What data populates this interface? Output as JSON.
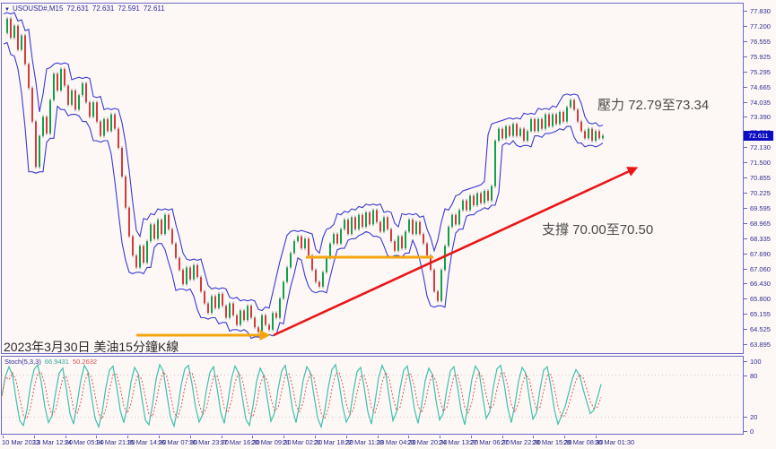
{
  "window_title": "USOUSD#,M15 chart",
  "colors": {
    "bg": "#fdf8f6",
    "frame": "#6a6ac4",
    "axis_text": "#2e2e8f",
    "band_blue": "#3a3ad6",
    "candle_up": "#0fa14a",
    "candle_down": "#d43a3a",
    "wick": "#555555",
    "orange_line": "#f4a50e",
    "trend_arrow_red": "#ea1616",
    "price_box_bg": "#0d0dc4",
    "stoch_k_teal": "#3fbfae",
    "stoch_d_red": "#dd5858",
    "level_dotted": "#cfc2c2"
  },
  "header": {
    "dropdown_icon": "▼",
    "symbol": "USOUSD#,M15",
    "ohlc": [
      "72.631",
      "72.631",
      "72.591",
      "72.611"
    ]
  },
  "annotations": {
    "resistance": "壓力 72.79至73.34",
    "support": "支撐 70.00至70.50",
    "caption": "2023年3月30日 美油15分鐘K線"
  },
  "indicator_label": {
    "name": "Stoch(5,3,3)",
    "k_value": "66.9431",
    "d_value": "50.2632"
  },
  "current_price": "72.611",
  "chart_data": {
    "main_chart": {
      "type": "candlestick",
      "symbol": "USOUSD#,M15",
      "timeframe": "M15",
      "y_axis": {
        "ticks": [
          "77.830",
          "77.200",
          "76.555",
          "75.925",
          "75.295",
          "74.665",
          "74.035",
          "73.390",
          "72.760",
          "72.130",
          "71.500",
          "70.855",
          "70.225",
          "69.595",
          "68.965",
          "68.335",
          "67.690",
          "67.060",
          "66.430",
          "65.800",
          "65.155",
          "64.525",
          "63.895"
        ]
      },
      "x_axis": {
        "labels": [
          "10 Mar 2023",
          "13 Mar 12:30",
          "14 Mar 05:30",
          "14 Mar 21:30",
          "15 Mar 14:30",
          "16 Mar 07:30",
          "16 Mar 23:30",
          "17 Mar 16:30",
          "20 Mar 09:30",
          "21 Mar 02:30",
          "21 Mar 18:30",
          "22 Mar 11:30",
          "23 Mar 04:30",
          "23 Mar 20:30",
          "24 Mar 13:30",
          "27 Mar 06:30",
          "27 Mar 22:30",
          "28 Mar 15:30",
          "29 Mar 08:30",
          "30 Mar 01:30"
        ]
      },
      "series": {
        "x_start": 4,
        "x_step": 4,
        "close": [
          76.9,
          77.5,
          76.7,
          77.2,
          76.2,
          76.8,
          75.6,
          74.6,
          73.2,
          71.3,
          72.6,
          73.4,
          72.7,
          74.1,
          75.2,
          74.5,
          75.4,
          74.7,
          73.9,
          74.5,
          73.7,
          74.3,
          74.8,
          74.0,
          73.4,
          74.0,
          73.2,
          72.6,
          73.3,
          72.8,
          73.5,
          72.9,
          72.1,
          70.9,
          69.6,
          68.4,
          67.6,
          67.1,
          68.0,
          67.3,
          68.2,
          68.9,
          68.3,
          69.1,
          68.5,
          69.3,
          68.7,
          68.1,
          67.5,
          67.0,
          66.4,
          67.1,
          66.6,
          67.2,
          66.7,
          66.1,
          65.6,
          65.2,
          65.9,
          65.4,
          66.0,
          65.5,
          65.0,
          65.6,
          65.1,
          64.7,
          65.3,
          64.9,
          65.5,
          65.0,
          64.6,
          64.4,
          65.1,
          64.7,
          64.5,
          65.2,
          65.0,
          65.8,
          66.5,
          67.1,
          67.7,
          68.2,
          68.4,
          67.9,
          68.3,
          67.6,
          67.0,
          66.5,
          66.3,
          66.9,
          67.5,
          68.1,
          68.5,
          68.1,
          68.7,
          69.1,
          68.5,
          69.2,
          68.7,
          69.3,
          68.8,
          69.4,
          68.9,
          69.5,
          69.0,
          68.6,
          69.2,
          68.7,
          68.2,
          67.8,
          68.4,
          67.9,
          68.6,
          69.1,
          68.5,
          69.0,
          68.5,
          68.1,
          67.6,
          67.0,
          66.1,
          65.7,
          67.0,
          68.0,
          68.8,
          69.3,
          68.9,
          69.5,
          69.9,
          69.5,
          70.1,
          69.7,
          70.2,
          69.8,
          70.3,
          69.9,
          70.5,
          72.4,
          72.9,
          72.5,
          73.0,
          72.6,
          73.1,
          72.6,
          72.9,
          72.4,
          72.8,
          73.3,
          72.8,
          73.3,
          72.9,
          73.5,
          73.0,
          73.5,
          73.1,
          73.6,
          73.2,
          73.8,
          74.1,
          73.7,
          73.2,
          72.8,
          72.5,
          72.9,
          72.4,
          72.8,
          72.5,
          72.611
        ]
      },
      "current_price": 72.611,
      "drawings": {
        "support_line_low": {
          "x1": 152,
          "x2": 298,
          "y": 374,
          "arrow": true
        },
        "support_line_mid": {
          "x1": 341,
          "x2": 483,
          "y": 287,
          "arrow": false
        },
        "trend_arrow": {
          "x1": 305,
          "y1": 374,
          "x2": 708,
          "y2": 188
        }
      }
    },
    "stochastic": {
      "type": "line",
      "name": "Stoch(5,3,3)",
      "range": [
        0,
        100
      ],
      "levels": [
        100,
        80,
        20,
        0
      ],
      "dotted_levels": [
        80,
        20
      ],
      "x_start": 2,
      "x_step": 4,
      "k": [
        50,
        78,
        92,
        80,
        45,
        15,
        8,
        30,
        65,
        88,
        95,
        70,
        35,
        12,
        22,
        55,
        83,
        90,
        60,
        25,
        10,
        40,
        72,
        94,
        85,
        50,
        18,
        6,
        28,
        62,
        87,
        93,
        64,
        30,
        12,
        35,
        70,
        91,
        82,
        48,
        16,
        9,
        38,
        74,
        95,
        86,
        52,
        20,
        7,
        32,
        66,
        89,
        94,
        68,
        34,
        13,
        24,
        58,
        84,
        92,
        61,
        27,
        11,
        42,
        75,
        93,
        83,
        49,
        17,
        8,
        36,
        71,
        90,
        80,
        46,
        14,
        26,
        60,
        86,
        94,
        66,
        32,
        12,
        39,
        73,
        92,
        84,
        51,
        19,
        6,
        29,
        63,
        88,
        95,
        69,
        35,
        13,
        23,
        57,
        85,
        91,
        62,
        28,
        10,
        41,
        76,
        94,
        82,
        47,
        15,
        27,
        61,
        87,
        93,
        65,
        31,
        11,
        37,
        72,
        90,
        81,
        44,
        16,
        25,
        59,
        86,
        92,
        63,
        29,
        9,
        40,
        74,
        93,
        85,
        50,
        18,
        28,
        64,
        89,
        94,
        67,
        33,
        12,
        38,
        71,
        91,
        83,
        48,
        17,
        26,
        60,
        87,
        92,
        64,
        30,
        10,
        22,
        35,
        55,
        75,
        88,
        80,
        60,
        42,
        25,
        30,
        48,
        67
      ],
      "last_k": "66.9431",
      "last_d": "50.2632"
    }
  }
}
